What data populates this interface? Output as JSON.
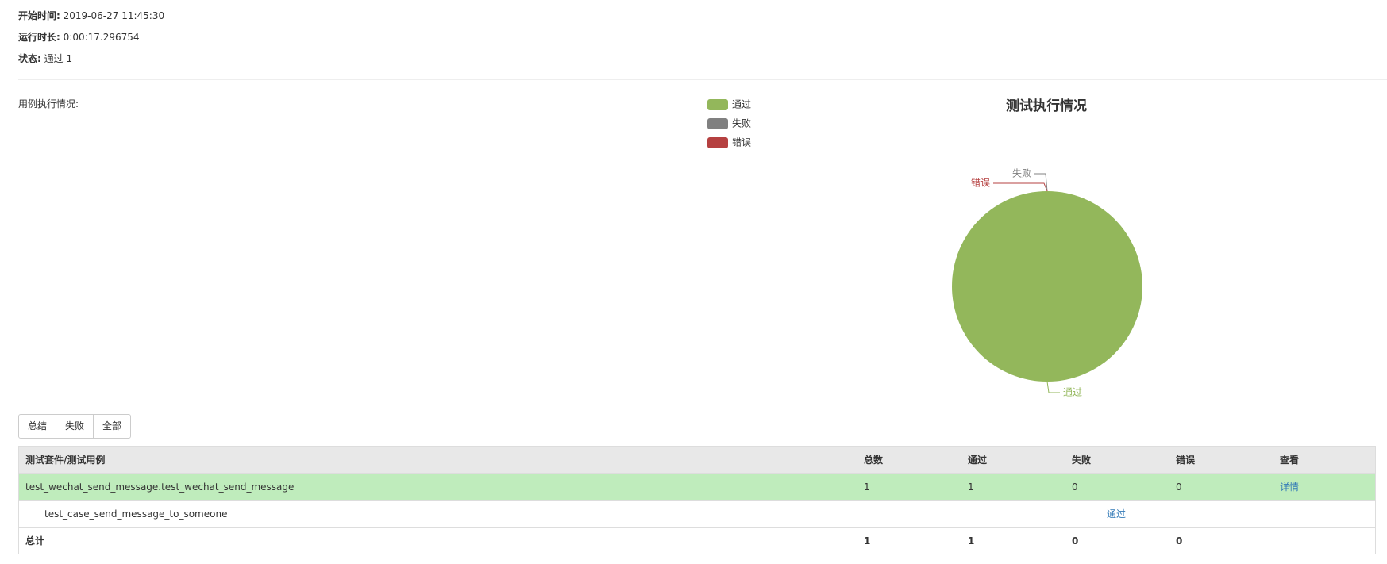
{
  "header": {
    "fields": [
      {
        "label": "开始时间:",
        "value": "2019-06-27 11:45:30"
      },
      {
        "label": "运行时长:",
        "value": "0:00:17.296754"
      },
      {
        "label": "状态:",
        "value": "通过 1"
      }
    ]
  },
  "section_label": "用例执行情况:",
  "chart_data": {
    "type": "pie",
    "title": "测试执行情况",
    "categories": [
      "通过",
      "失败",
      "错误"
    ],
    "values": [
      1,
      0,
      0
    ],
    "colors": [
      "#93b75b",
      "#808080",
      "#b54040"
    ]
  },
  "buttons": [
    "总结",
    "失败",
    "全部"
  ],
  "table": {
    "headers": [
      "测试套件/测试用例",
      "总数",
      "通过",
      "失败",
      "错误",
      "查看"
    ],
    "rows": [
      [
        "test_wechat_send_message.test_wechat_send_message",
        "1",
        "1",
        "0",
        "0",
        "详情"
      ],
      [
        "test_case_send_message_to_someone",
        "通过"
      ],
      [
        "总计",
        "1",
        "1",
        "0",
        "0"
      ]
    ]
  }
}
